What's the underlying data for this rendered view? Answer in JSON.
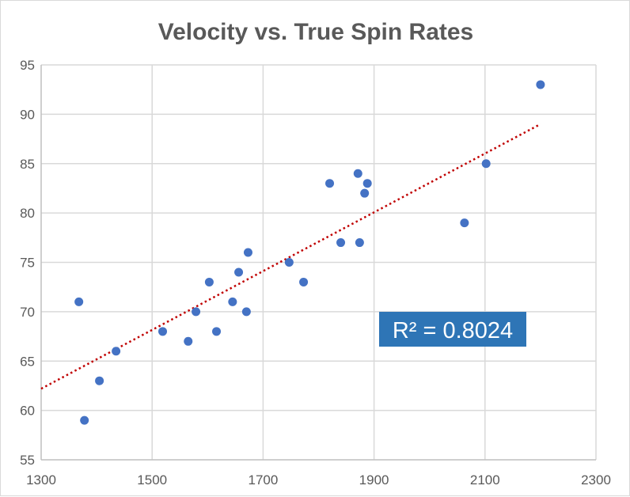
{
  "chart_data": {
    "type": "scatter",
    "title": "Velocity vs. True Spin Rates",
    "xlabel": "",
    "ylabel": "",
    "xlim": [
      1300,
      2300
    ],
    "ylim": [
      55,
      95
    ],
    "xticks": [
      1300,
      1500,
      1700,
      1900,
      2100,
      2300
    ],
    "yticks": [
      55,
      60,
      65,
      70,
      75,
      80,
      85,
      90,
      95
    ],
    "grid": true,
    "legend": "none",
    "point_color": "#4472c4",
    "trendline": {
      "type": "linear",
      "color": "#c00000",
      "style": "dotted",
      "x_range": [
        1300,
        2200
      ],
      "y_start": 62.2,
      "y_end": 89.0
    },
    "r_squared_label": "R² = 0.8024",
    "r_squared_box_color": "#2e75b6",
    "points": [
      [
        1368,
        71
      ],
      [
        1378,
        59
      ],
      [
        1405,
        63
      ],
      [
        1435,
        66
      ],
      [
        1519,
        68
      ],
      [
        1565,
        67
      ],
      [
        1579,
        70
      ],
      [
        1603,
        73
      ],
      [
        1616,
        68
      ],
      [
        1645,
        71
      ],
      [
        1656,
        74
      ],
      [
        1670,
        70
      ],
      [
        1673,
        76
      ],
      [
        1747,
        75
      ],
      [
        1773,
        73
      ],
      [
        1820,
        83
      ],
      [
        1840,
        77
      ],
      [
        1871,
        84
      ],
      [
        1874,
        77
      ],
      [
        1883,
        82
      ],
      [
        1888,
        83
      ],
      [
        2063,
        79
      ],
      [
        2102,
        85
      ],
      [
        2200,
        93
      ]
    ]
  }
}
